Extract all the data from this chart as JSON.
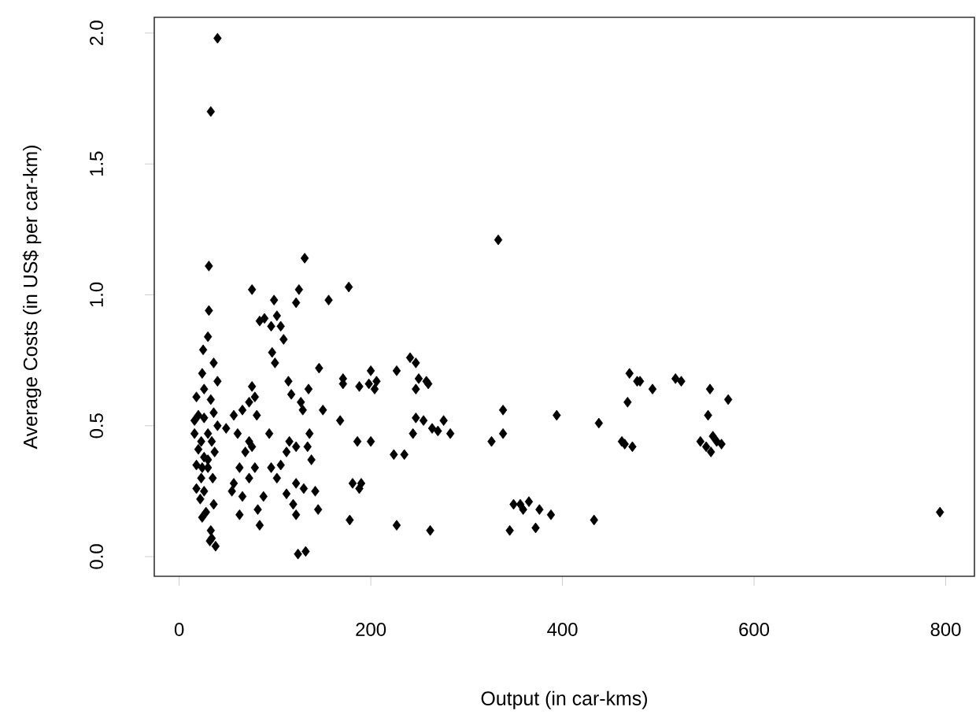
{
  "chart_data": {
    "type": "scatter",
    "xlabel": "Output (in car-kms)",
    "ylabel": "Average Costs (in US$ per car-km)",
    "xlim": [
      -26,
      830
    ],
    "ylim": [
      -0.075,
      2.06
    ],
    "xticks": [
      0,
      200,
      400,
      600,
      800
    ],
    "yticks": [
      {
        "value": 0,
        "label": "0.0"
      },
      0.5,
      {
        "value": 1,
        "label": "1.0"
      },
      1.5,
      {
        "value": 2,
        "label": "2.0"
      }
    ],
    "grid": false,
    "marker": "diamond",
    "series": [
      {
        "color": "#000000",
        "x": [
          40,
          33,
          31,
          31,
          30,
          25,
          36,
          40,
          24,
          26,
          18,
          33,
          20,
          26,
          16,
          23,
          30,
          34,
          20,
          26,
          18,
          30,
          23,
          18,
          26,
          22,
          36,
          28,
          33,
          32,
          38,
          34,
          24,
          36,
          40,
          37,
          16,
          30,
          24,
          35,
          76,
          49,
          57,
          66,
          73,
          76,
          79,
          81,
          73,
          69,
          76,
          61,
          63,
          57,
          55,
          66,
          73,
          63,
          82,
          84,
          88,
          79,
          94,
          84,
          89,
          96,
          99,
          102,
          106,
          109,
          97,
          100,
          96,
          102,
          106,
          112,
          115,
          122,
          112,
          125,
          122,
          131,
          114,
          117,
          127,
          135,
          129,
          136,
          134,
          138,
          130,
          119,
          122,
          142,
          145,
          124,
          132,
          122,
          146,
          150,
          156,
          177,
          168,
          171,
          171,
          186,
          181,
          178,
          190,
          188,
          200,
          200,
          198,
          188,
          204,
          206,
          227,
          224,
          235,
          227,
          241,
          247,
          250,
          258,
          247,
          260,
          247,
          244,
          255,
          264,
          270,
          276,
          283,
          262,
          333,
          338,
          326,
          338,
          345,
          349,
          356,
          359,
          365,
          376,
          372,
          388,
          394,
          433,
          438,
          468,
          470,
          478,
          481,
          462,
          465,
          473,
          494,
          518,
          524,
          554,
          552,
          573,
          544,
          550,
          555,
          561,
          566,
          557,
          794
        ],
        "values": [
          1.98,
          1.7,
          1.11,
          0.94,
          0.84,
          0.79,
          0.74,
          0.67,
          0.7,
          0.64,
          0.61,
          0.6,
          0.54,
          0.53,
          0.47,
          0.44,
          0.47,
          0.44,
          0.41,
          0.38,
          0.35,
          0.34,
          0.3,
          0.26,
          0.25,
          0.22,
          0.2,
          0.17,
          0.1,
          0.06,
          0.04,
          0.07,
          0.15,
          0.55,
          0.5,
          0.4,
          0.52,
          0.37,
          0.34,
          0.3,
          1.02,
          0.49,
          0.54,
          0.56,
          0.59,
          0.65,
          0.61,
          0.54,
          0.44,
          0.4,
          0.42,
          0.47,
          0.34,
          0.28,
          0.25,
          0.23,
          0.3,
          0.16,
          0.18,
          0.12,
          0.23,
          0.34,
          0.47,
          0.9,
          0.91,
          0.88,
          0.98,
          0.92,
          0.88,
          0.83,
          0.78,
          0.74,
          0.34,
          0.3,
          0.35,
          0.4,
          0.44,
          0.42,
          0.24,
          1.02,
          0.97,
          1.14,
          0.67,
          0.62,
          0.59,
          0.64,
          0.56,
          0.47,
          0.42,
          0.37,
          0.26,
          0.2,
          0.28,
          0.25,
          0.18,
          0.01,
          0.02,
          0.16,
          0.72,
          0.56,
          0.98,
          1.03,
          0.52,
          0.68,
          0.66,
          0.44,
          0.28,
          0.14,
          0.28,
          0.26,
          0.44,
          0.71,
          0.66,
          0.65,
          0.64,
          0.67,
          0.71,
          0.39,
          0.39,
          0.12,
          0.76,
          0.74,
          0.68,
          0.67,
          0.64,
          0.66,
          0.53,
          0.47,
          0.52,
          0.49,
          0.48,
          0.52,
          0.47,
          0.1,
          1.21,
          0.56,
          0.44,
          0.47,
          0.1,
          0.2,
          0.2,
          0.18,
          0.21,
          0.18,
          0.11,
          0.16,
          0.54,
          0.14,
          0.51,
          0.59,
          0.7,
          0.67,
          0.67,
          0.44,
          0.43,
          0.42,
          0.64,
          0.68,
          0.67,
          0.64,
          0.54,
          0.6,
          0.44,
          0.42,
          0.4,
          0.44,
          0.43,
          0.46,
          0.17
        ]
      }
    ]
  }
}
